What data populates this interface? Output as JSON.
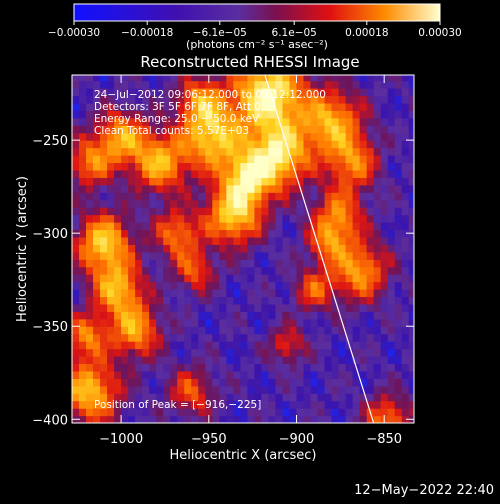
{
  "chart_data": {
    "type": "heatmap",
    "title": "Reconstructed RHESSI Image",
    "xlabel": "Heliocentric X (arcsec)",
    "ylabel": "Heliocentric Y (arcsec)",
    "xlim": [
      -1028,
      -833
    ],
    "ylim": [
      -402,
      -215
    ],
    "x_ticks": [
      -1000,
      -950,
      -900,
      -850
    ],
    "x_tick_labels": [
      "−1000",
      "−950",
      "−900",
      "−850"
    ],
    "y_ticks": [
      -250,
      -300,
      -350,
      -400
    ],
    "y_tick_labels": [
      "−250",
      "−300",
      "−350",
      "−400"
    ],
    "colorbar": {
      "range": [
        -0.0003,
        0.0003
      ],
      "ticks": [
        -0.0003,
        -0.00018,
        -6.1e-05,
        6.1e-05,
        0.00018,
        0.0003
      ],
      "tick_labels": [
        "−0.00030",
        "−0.00018",
        "−6.1e−05",
        "6.1e−05",
        "0.00018",
        "0.00030"
      ],
      "unit_label": "(photons cm⁻² s⁻¹ asec⁻²)"
    },
    "annotations": [
      "24−Jul−2012 09:06:12.000 to 09:12:12.000",
      "Detectors: 3F 5F 6F 7F 8F, Att 0",
      "Energy Range: 25.0 − 50.0 keV",
      "Clean     Total counts: 5.57E+03"
    ],
    "peak_label": "Position of Peak = [−916,−225]",
    "peak": [
      -916,
      -225
    ],
    "limb_line": [
      [
        -918,
        -215
      ],
      [
        -856,
        -402
      ]
    ],
    "colors": {
      "min": "#1a1aff",
      "low": "#4a1a8a",
      "zero": "#5a2ea0",
      "mid": "#e01010",
      "high": "#ff8c00",
      "max": "#ffffc0"
    }
  },
  "footer": {
    "timestamp": "12−May−2022 22:40"
  }
}
